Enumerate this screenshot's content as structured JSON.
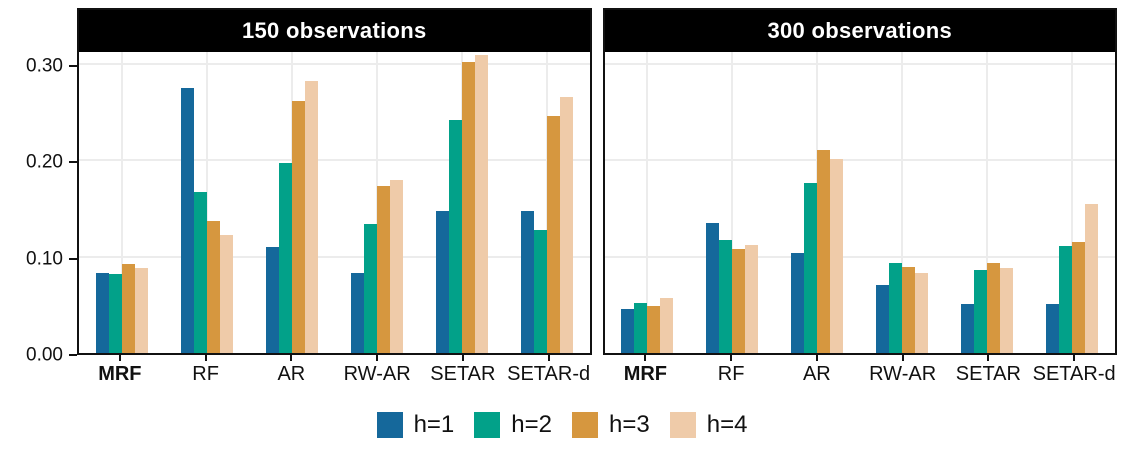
{
  "figure": {
    "background": "#ffffff",
    "panel_border_color": "#111111",
    "strip_bg": "#000000",
    "strip_text_color": "#ffffff",
    "gridline_color": "#ececec"
  },
  "yaxis": {
    "ticks": [
      {
        "label": "0.00",
        "value": 0.0
      },
      {
        "label": "0.10",
        "value": 0.1
      },
      {
        "label": "0.20",
        "value": 0.2
      },
      {
        "label": "0.30",
        "value": 0.3
      }
    ]
  },
  "legend": {
    "position": "bottom",
    "items": [
      {
        "label": "h=1",
        "color": "#15689b"
      },
      {
        "label": "h=2",
        "color": "#02a189"
      },
      {
        "label": "h=3",
        "color": "#d6973f"
      },
      {
        "label": "h=4",
        "color": "#efcba9"
      }
    ]
  },
  "chart_data": {
    "type": "bar",
    "grouping": "dodged",
    "grid": true,
    "legend_position": "bottom",
    "ylim": [
      0,
      0.3126
    ],
    "ytick_values": [
      0.0,
      0.1,
      0.2,
      0.3
    ],
    "ytick_labels": [
      "0.00",
      "0.10",
      "0.20",
      "0.30"
    ],
    "categories": [
      "MRF",
      "RF",
      "AR",
      "RW-AR",
      "SETAR",
      "SETAR-d"
    ],
    "bold_category": "MRF",
    "series_names": [
      "h=1",
      "h=2",
      "h=3",
      "h=4"
    ],
    "series_colors": [
      "#15689b",
      "#02a189",
      "#d6973f",
      "#efcba9"
    ],
    "facets": [
      {
        "title": "150 observations",
        "series": [
          {
            "name": "h=1",
            "values": [
              0.083,
              0.275,
              0.11,
              0.083,
              0.147,
              0.147
            ]
          },
          {
            "name": "h=2",
            "values": [
              0.082,
              0.167,
              0.197,
              0.134,
              0.242,
              0.128
            ]
          },
          {
            "name": "h=3",
            "values": [
              0.092,
              0.137,
              0.262,
              0.173,
              0.302,
              0.246
            ]
          },
          {
            "name": "h=4",
            "values": [
              0.088,
              0.123,
              0.283,
              0.18,
              0.31,
              0.266
            ]
          }
        ]
      },
      {
        "title": "300 observations",
        "series": [
          {
            "name": "h=1",
            "values": [
              0.046,
              0.135,
              0.104,
              0.071,
              0.051,
              0.051
            ]
          },
          {
            "name": "h=2",
            "values": [
              0.052,
              0.117,
              0.177,
              0.094,
              0.086,
              0.111
            ]
          },
          {
            "name": "h=3",
            "values": [
              0.049,
              0.108,
              0.211,
              0.089,
              0.093,
              0.115
            ]
          },
          {
            "name": "h=4",
            "values": [
              0.057,
              0.112,
              0.201,
              0.083,
              0.088,
              0.155
            ]
          }
        ]
      }
    ]
  }
}
